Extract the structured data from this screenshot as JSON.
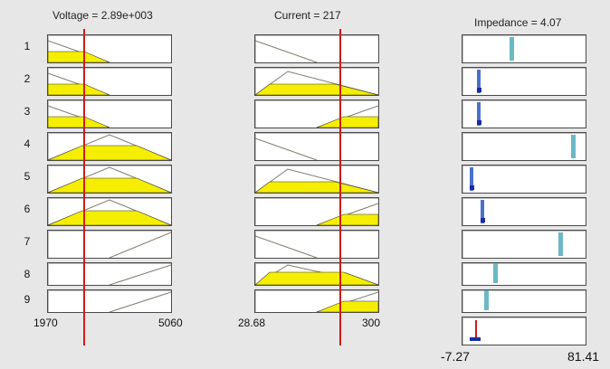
{
  "headers": {
    "voltage": "Voltage = 2.89e+003",
    "current": "Current = 217",
    "impedance": "Impedance = 4.07"
  },
  "row_labels": [
    "1",
    "2",
    "3",
    "4",
    "5",
    "6",
    "7",
    "8",
    "9"
  ],
  "voltage_axis": {
    "min": "1970",
    "max": "5060"
  },
  "current_axis": {
    "min": "28.68",
    "max": "300"
  },
  "impedance_axis": {
    "min": "-7.27",
    "max": "81.41"
  },
  "colors": {
    "fill": "#f5ee00",
    "guide": "#d11a1a",
    "tick": "#6bb8c6",
    "dot": "#1b2aa8"
  }
}
